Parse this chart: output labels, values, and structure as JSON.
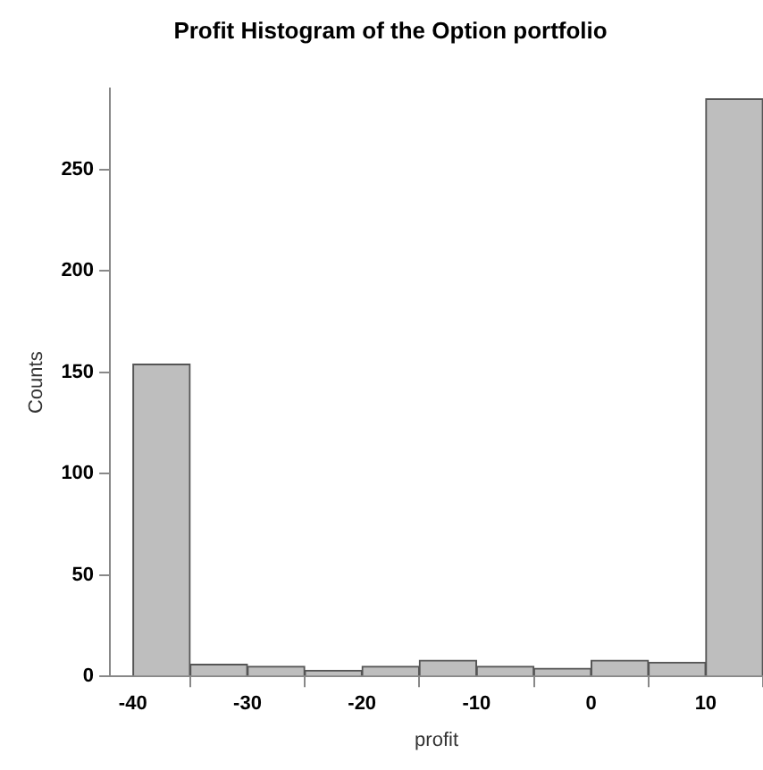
{
  "chart_data": {
    "type": "histogram",
    "title": "Profit Histogram of the Option portfolio",
    "xlabel": "profit",
    "ylabel": "Counts",
    "bins": [
      -40,
      -35,
      -30,
      -25,
      -20,
      -15,
      -10,
      -5,
      0,
      5,
      10,
      15
    ],
    "values": [
      154,
      6,
      5,
      3,
      5,
      8,
      5,
      4,
      8,
      7,
      285
    ],
    "color": "#bebebe",
    "xlim": [
      -42,
      15
    ],
    "xticks": [
      -40,
      -30,
      -20,
      -10,
      0,
      10
    ],
    "ylim": [
      0,
      290
    ],
    "yticks": [
      0,
      50,
      100,
      150,
      200,
      250
    ],
    "grid": false,
    "legend": false
  }
}
